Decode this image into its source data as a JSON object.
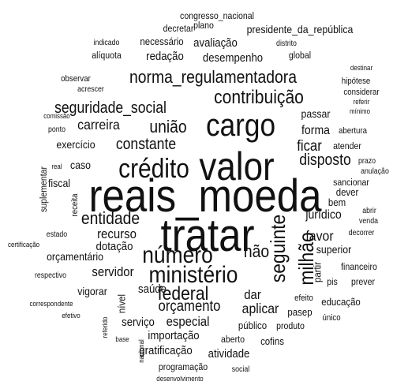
{
  "words": [
    "congresso_nacional",
    "decretar",
    "plano",
    "presidente_da_república",
    "indicado",
    "necessário",
    "avaliação",
    "distrito",
    "alíquota",
    "redação",
    "desempenho",
    "global",
    "destinar",
    "observar",
    "acrescer",
    "norma_regulamentadora",
    "hipótese",
    "considerar",
    "referir",
    "mínimo",
    "contribuição",
    "seguridade_social",
    "comissão",
    "passar",
    "cargo",
    "carreira",
    "união",
    "ponto",
    "abertura",
    "forma",
    "exercício",
    "constante",
    "ficar",
    "atender",
    "crédito",
    "valor",
    "disposto",
    "caso",
    "prazo",
    "suplementar",
    "real",
    "fiscal",
    "anulação",
    "sancionar",
    "reais_moeda",
    "receita",
    "dever",
    "bem",
    "entidade",
    "abrir",
    "venda",
    "tratar",
    "seguinte",
    "jurídico",
    "milhão",
    "estado",
    "recurso",
    "favor",
    "decorrer",
    "certificação",
    "dotação",
    "número",
    "não",
    "superior",
    "orçamentário",
    "ministério",
    "partir",
    "financeiro",
    "respectivo",
    "servidor",
    "vigorar",
    "saúde",
    "federal",
    "dar",
    "pis",
    "prever",
    "nível",
    "orçamento",
    "aplicar",
    "efeito",
    "correspondente",
    "educação",
    "efetivo",
    "serviço",
    "especial",
    "pasep",
    "único",
    "referido",
    "público",
    "produto",
    "base",
    "importação",
    "nacional",
    "aberto",
    "cofins",
    "gratificação",
    "atividade",
    "programação",
    "social",
    "desenvolvimento"
  ]
}
